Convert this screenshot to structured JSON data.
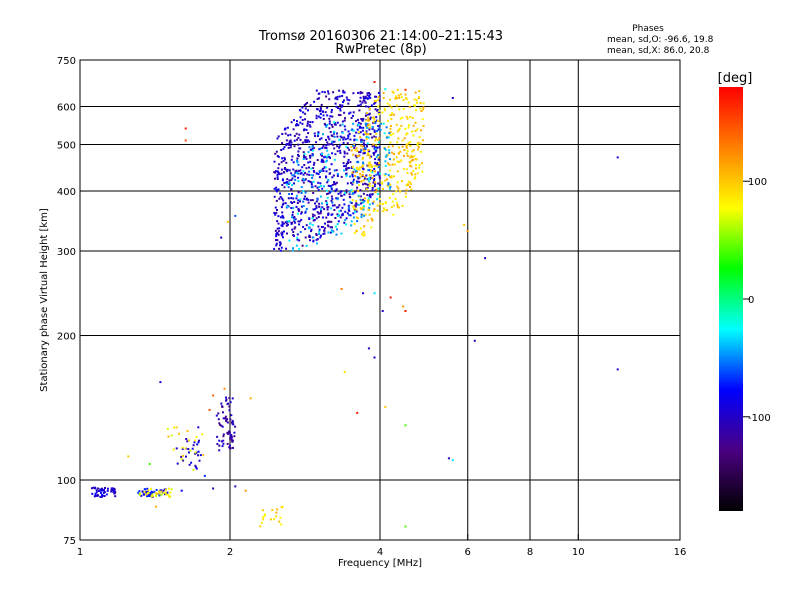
{
  "chart_data": {
    "type": "scatter",
    "title": "Tromsø 20160306 21:14:00–21:15:43",
    "subtitle": "RwPretec (8p)",
    "xlabel": "Frequency [MHz]",
    "ylabel": "Stationary phase Virtual Height [km]",
    "x_scale": "log",
    "y_scale": "log",
    "xlim": [
      1,
      16
    ],
    "ylim": [
      75,
      750
    ],
    "x_ticks": [
      1,
      2,
      4,
      6,
      8,
      10,
      16
    ],
    "y_ticks": [
      75,
      100,
      200,
      300,
      400,
      500,
      600,
      750
    ],
    "grid": true,
    "phase_box": {
      "heading": "Phases",
      "line1": "mean, sd,O: -96.6, 19.8",
      "line2": "mean, sd,X:  86.0, 20.8"
    },
    "colorbar": {
      "label": "[deg]",
      "range": [
        -180,
        180
      ],
      "ticks": [
        -100,
        0,
        100
      ],
      "colors": [
        "#000000",
        "#4b0082",
        "#0000ff",
        "#00ffff",
        "#00ff00",
        "#ffff00",
        "#ff8000",
        "#ff0000"
      ]
    },
    "clusters": [
      {
        "f0": 2.45,
        "f1": 4.0,
        "h0": 300,
        "h1": 650,
        "phase": -100,
        "n": 900,
        "shape": "f"
      },
      {
        "f0": 3.5,
        "f1": 4.9,
        "h0": 320,
        "h1": 650,
        "phase": 95,
        "n": 380,
        "shape": "x"
      },
      {
        "f0": 2.6,
        "f1": 4.2,
        "h0": 300,
        "h1": 560,
        "phase": -40,
        "n": 220,
        "shape": "f"
      },
      {
        "f0": 1.05,
        "f1": 1.18,
        "h0": 92,
        "h1": 97,
        "phase": -95,
        "n": 50,
        "shape": "r"
      },
      {
        "f0": 1.3,
        "f1": 1.5,
        "h0": 92,
        "h1": 96,
        "phase": -80,
        "n": 40,
        "shape": "r"
      },
      {
        "f0": 1.3,
        "f1": 1.55,
        "h0": 92,
        "h1": 96,
        "phase": 80,
        "n": 30,
        "shape": "r"
      },
      {
        "f0": 1.88,
        "f1": 2.05,
        "h0": 115,
        "h1": 150,
        "phase": -110,
        "n": 70,
        "shape": "r"
      },
      {
        "f0": 1.55,
        "f1": 1.75,
        "h0": 105,
        "h1": 130,
        "phase": -95,
        "n": 30,
        "shape": "r"
      },
      {
        "f0": 1.5,
        "f1": 1.8,
        "h0": 105,
        "h1": 130,
        "phase": 85,
        "n": 20,
        "shape": "r"
      },
      {
        "f0": 2.3,
        "f1": 2.55,
        "h0": 80,
        "h1": 88,
        "phase": 90,
        "n": 18,
        "shape": "r"
      }
    ],
    "points": [
      {
        "x": 1.63,
        "y": 540,
        "p": 170
      },
      {
        "x": 1.63,
        "y": 510,
        "p": 150
      },
      {
        "x": 1.98,
        "y": 345,
        "p": 100
      },
      {
        "x": 1.92,
        "y": 320,
        "p": -100
      },
      {
        "x": 2.05,
        "y": 355,
        "p": -60
      },
      {
        "x": 1.45,
        "y": 160,
        "p": -90
      },
      {
        "x": 1.85,
        "y": 150,
        "p": 140
      },
      {
        "x": 1.95,
        "y": 155,
        "p": 120
      },
      {
        "x": 2.2,
        "y": 148,
        "p": 110
      },
      {
        "x": 1.82,
        "y": 140,
        "p": 150
      },
      {
        "x": 1.25,
        "y": 112,
        "p": 100
      },
      {
        "x": 1.38,
        "y": 108,
        "p": 40
      },
      {
        "x": 1.78,
        "y": 102,
        "p": -70
      },
      {
        "x": 1.85,
        "y": 96,
        "p": -110
      },
      {
        "x": 2.05,
        "y": 97,
        "p": -100
      },
      {
        "x": 2.15,
        "y": 95,
        "p": 120
      },
      {
        "x": 1.6,
        "y": 95,
        "p": -80
      },
      {
        "x": 1.42,
        "y": 88,
        "p": 110
      },
      {
        "x": 3.35,
        "y": 250,
        "p": 130
      },
      {
        "x": 3.7,
        "y": 245,
        "p": -100
      },
      {
        "x": 4.2,
        "y": 240,
        "p": 170
      },
      {
        "x": 3.9,
        "y": 245,
        "p": -30
      },
      {
        "x": 4.05,
        "y": 225,
        "p": -100
      },
      {
        "x": 4.45,
        "y": 230,
        "p": 120
      },
      {
        "x": 4.5,
        "y": 225,
        "p": 170
      },
      {
        "x": 3.8,
        "y": 188,
        "p": -100
      },
      {
        "x": 3.9,
        "y": 180,
        "p": -90
      },
      {
        "x": 3.4,
        "y": 168,
        "p": 90
      },
      {
        "x": 3.6,
        "y": 138,
        "p": 170
      },
      {
        "x": 4.1,
        "y": 142,
        "p": 100
      },
      {
        "x": 4.5,
        "y": 130,
        "p": 40
      },
      {
        "x": 4.5,
        "y": 80,
        "p": 40
      },
      {
        "x": 5.6,
        "y": 110,
        "p": -30
      },
      {
        "x": 5.5,
        "y": 111,
        "p": -100
      },
      {
        "x": 6.5,
        "y": 290,
        "p": -100
      },
      {
        "x": 6.2,
        "y": 195,
        "p": -100
      },
      {
        "x": 5.9,
        "y": 340,
        "p": 100
      },
      {
        "x": 6.0,
        "y": 330,
        "p": 120
      },
      {
        "x": 5.6,
        "y": 625,
        "p": -100
      },
      {
        "x": 4.5,
        "y": 650,
        "p": 160
      },
      {
        "x": 3.9,
        "y": 675,
        "p": 170
      },
      {
        "x": 4.1,
        "y": 652,
        "p": -20
      },
      {
        "x": 12.0,
        "y": 470,
        "p": -100
      },
      {
        "x": 12.0,
        "y": 170,
        "p": -100
      }
    ]
  }
}
